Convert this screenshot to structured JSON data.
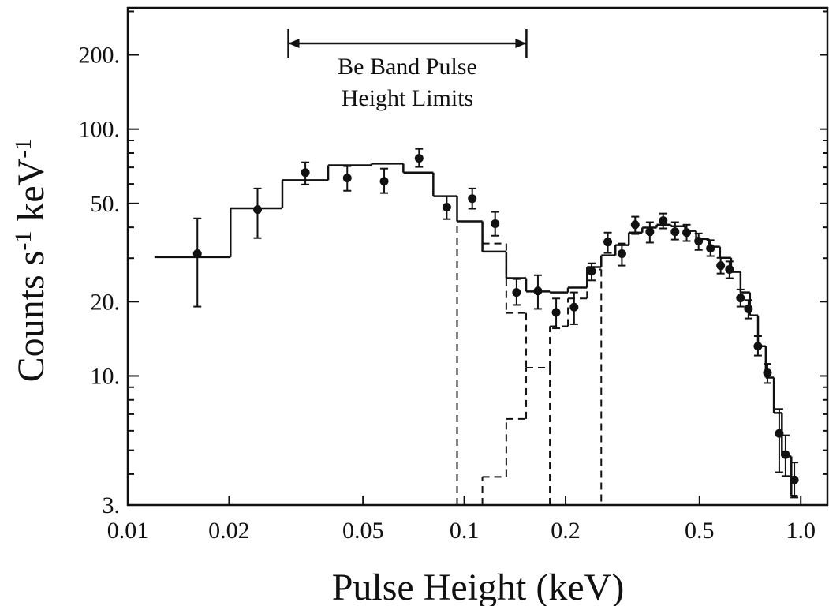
{
  "chart_data": {
    "type": "errorbar",
    "xlabel": "Pulse Height (keV)",
    "ylabel_parts": [
      "Counts s",
      "-1",
      " keV",
      "-1"
    ],
    "log_x": true,
    "log_y": true,
    "xlim": [
      0.01,
      1.2
    ],
    "ylim": [
      3,
      310
    ],
    "xticks": [
      0.01,
      0.02,
      0.05,
      0.1,
      0.2,
      0.5,
      {
        "value": 1.0,
        "label": "1.0"
      }
    ],
    "yticks": [
      {
        "value": 3,
        "label": "3."
      },
      {
        "value": 10,
        "label": "10."
      },
      {
        "value": 20,
        "label": "20."
      },
      {
        "value": 50,
        "label": "50."
      },
      {
        "value": 100,
        "label": "100."
      },
      {
        "value": 200,
        "label": "200."
      }
    ],
    "yminorticks": [
      4,
      5,
      6,
      7,
      8,
      9,
      30,
      40,
      60,
      70,
      80,
      90,
      300
    ],
    "annotation": {
      "lines": [
        "Be Band Pulse",
        "Height Limits"
      ],
      "x": [
        0.03,
        0.153
      ]
    },
    "data": {
      "color": "#111111",
      "x": [
        0.0161,
        0.0243,
        0.0337,
        0.0449,
        0.0578,
        0.0734,
        0.0887,
        0.1056,
        0.1235,
        0.143,
        0.1655,
        0.1875,
        0.212,
        0.239,
        0.267,
        0.294,
        0.322,
        0.356,
        0.39,
        0.423,
        0.458,
        0.497,
        0.539,
        0.578,
        0.614,
        0.662,
        0.699,
        0.746,
        0.796,
        0.863,
        0.901,
        0.957
      ],
      "values": [
        31.3,
        47.2,
        66.7,
        63.4,
        61.5,
        76.2,
        48.3,
        52.3,
        41.4,
        21.8,
        22.1,
        18.1,
        19.0,
        26.6,
        34.9,
        31.3,
        41.0,
        38.4,
        42.6,
        38.4,
        38.1,
        35.2,
        32.9,
        28.0,
        27.0,
        20.7,
        18.7,
        13.2,
        10.3,
        5.85,
        4.8,
        3.79
      ],
      "lower": [
        19.1,
        36.2,
        59.7,
        56.3,
        55.1,
        70.3,
        43.2,
        47.6,
        37.0,
        19.4,
        18.7,
        15.6,
        16.2,
        24.4,
        31.5,
        28.0,
        37.6,
        34.7,
        39.6,
        35.7,
        35.2,
        32.4,
        30.6,
        26.0,
        24.9,
        19.1,
        17.1,
        12.1,
        9.36,
        4.07,
        3.93,
        3.22
      ],
      "upper": [
        43.5,
        57.5,
        73.4,
        70.8,
        69.2,
        83.2,
        53.5,
        57.5,
        46.2,
        24.7,
        25.6,
        20.6,
        21.8,
        28.6,
        38.1,
        34.4,
        44.2,
        42.0,
        45.5,
        42.0,
        41.0,
        37.8,
        35.5,
        30.1,
        29.1,
        22.4,
        20.3,
        14.5,
        11.2,
        7.35,
        5.75,
        4.46
      ]
    },
    "models": [
      {
        "style": "solid",
        "bin_edges": [
          0.012,
          0.0202,
          0.0288,
          0.0394,
          0.053,
          0.0659,
          0.0809,
          0.0952,
          0.1132,
          0.1333,
          0.1527,
          0.1796,
          0.2033,
          0.2317,
          0.2553,
          0.2813,
          0.3083,
          0.3381,
          0.3731,
          0.4111,
          0.4531,
          0.4887,
          0.5333,
          0.5754,
          0.6209,
          0.6622,
          0.7063,
          0.7464,
          0.787,
          0.8318,
          0.879,
          0.9376,
          0.9795
        ],
        "values": [
          30.3,
          47.8,
          62.1,
          71.4,
          72.5,
          66.7,
          53.5,
          42.3,
          31.9,
          24.9,
          22.0,
          21.8,
          22.8,
          27.6,
          30.8,
          33.9,
          38.1,
          39.9,
          41.0,
          40.4,
          38.7,
          35.9,
          33.4,
          30.1,
          26.4,
          21.8,
          17.6,
          13.2,
          9.85,
          7.08,
          4.72,
          3.27
        ]
      },
      {
        "style": "dashed",
        "bin_edges": [
          0.0952,
          0.1132,
          0.1333,
          0.1527,
          0.1796
        ],
        "values": [
          42.3,
          34.4,
          18.0,
          10.8
        ]
      },
      {
        "style": "dashed",
        "bin_edges": [
          0.1132,
          0.1333,
          0.1527,
          0.1796,
          0.2033,
          0.2317,
          0.2553
        ],
        "values": [
          3.9,
          6.7,
          10.8,
          15.9,
          20.6,
          27.0
        ]
      }
    ]
  }
}
